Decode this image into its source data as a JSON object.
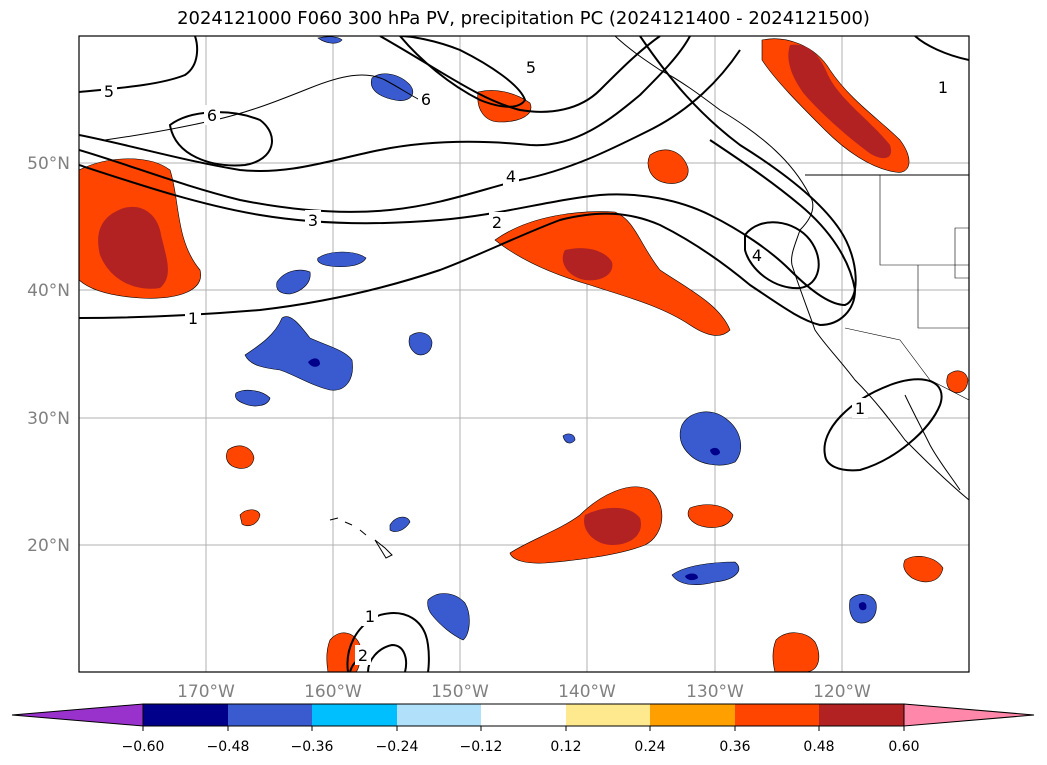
{
  "title": "2024121000 F060 300 hPa PV, precipitation PC (2024121400 - 2024121500)",
  "map": {
    "lon_labels": [
      "170°W",
      "160°W",
      "150°W",
      "140°W",
      "130°W",
      "120°W"
    ],
    "lat_labels": [
      "50°N",
      "40°N",
      "30°N",
      "20°N"
    ],
    "contour_labels": [
      "5",
      "6",
      "5",
      "6",
      "4",
      "3",
      "2",
      "4",
      "1",
      "1",
      "1",
      "1",
      "2"
    ],
    "colors": {
      "coast": "#000000",
      "grid": "#b0b0b0",
      "pos_outer": "#fff2a0",
      "pos_mid": "#ff9f00",
      "pos_main": "#ff4500",
      "pos_core": "#b22222",
      "neg_outer": "#b0e0fa",
      "neg_mid": "#00bfff",
      "neg_main": "#3a5bd0",
      "neg_core": "#00008b"
    }
  },
  "colorbar": {
    "ticks": [
      "−0.60",
      "−0.48",
      "−0.36",
      "−0.24",
      "−0.12",
      "0.12",
      "0.24",
      "0.36",
      "0.48",
      "0.60"
    ],
    "colors": [
      "#9932cc",
      "#00008b",
      "#3a5bd0",
      "#00bfff",
      "#b0e0fa",
      "#ffffff",
      "#ffe98f",
      "#ffa000",
      "#ff4500",
      "#b22222",
      "#ff88aa"
    ]
  }
}
